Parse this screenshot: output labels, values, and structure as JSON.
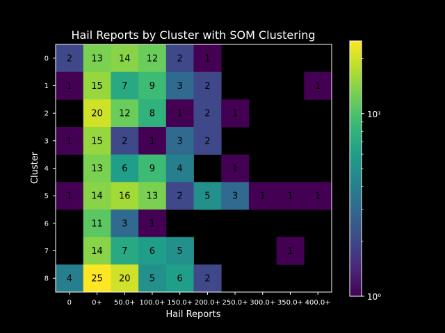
{
  "chart_data": {
    "type": "heatmap",
    "title": "Hail Reports by Cluster with SOM Clustering",
    "xlabel": "Hail Reports",
    "ylabel": "Cluster",
    "x_categories": [
      "0",
      "0+",
      "50.0+",
      "100.0+",
      "150.0+",
      "200.0+",
      "250.0+",
      "300.0+",
      "350.0+",
      "400.0+"
    ],
    "y_categories": [
      "0",
      "1",
      "2",
      "3",
      "4",
      "5",
      "6",
      "7",
      "8"
    ],
    "values": [
      [
        2,
        13,
        14,
        12,
        2,
        1,
        null,
        null,
        null,
        null
      ],
      [
        1,
        15,
        7,
        9,
        3,
        2,
        null,
        null,
        null,
        1
      ],
      [
        null,
        20,
        12,
        8,
        1,
        2,
        1,
        null,
        null,
        null
      ],
      [
        1,
        15,
        2,
        1,
        3,
        2,
        null,
        null,
        null,
        null
      ],
      [
        null,
        13,
        6,
        9,
        4,
        null,
        1,
        null,
        null,
        null
      ],
      [
        1,
        14,
        16,
        13,
        2,
        5,
        3,
        1,
        1,
        1
      ],
      [
        null,
        11,
        3,
        1,
        null,
        null,
        null,
        null,
        null,
        null
      ],
      [
        null,
        14,
        7,
        6,
        5,
        null,
        null,
        null,
        1,
        null
      ],
      [
        4,
        25,
        20,
        5,
        6,
        2,
        null,
        null,
        null,
        null
      ]
    ],
    "colormap": "viridis",
    "color_scale": "log",
    "color_range": [
      1,
      25
    ],
    "colorbar_ticks": [
      "10⁰",
      "10¹"
    ],
    "background": "#000000"
  }
}
